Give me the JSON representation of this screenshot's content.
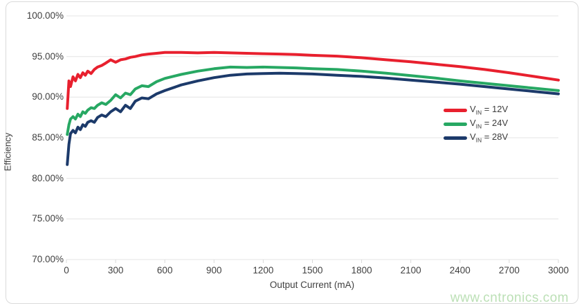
{
  "colors": {
    "grid": "#e4e4e4",
    "tick": "#d9d9d9",
    "axis_text": "#3f3f3f",
    "watermark": "#bce0b6",
    "card_border": "#dadada",
    "series_red": "#e8202e",
    "series_green": "#27a863",
    "series_navy": "#1c3a6a"
  },
  "watermark": "www.cntronics.com",
  "chart_data": {
    "type": "line",
    "title": "",
    "xlabel": "Output Current (mA)",
    "ylabel": "Efficiency",
    "xlim": [
      0,
      3000
    ],
    "ylim": [
      70,
      100
    ],
    "grid": "horizontal",
    "legend_position": "middle-right",
    "x_ticks": [
      0,
      300,
      600,
      900,
      1200,
      1500,
      1800,
      2100,
      2400,
      2700,
      3000
    ],
    "x_tick_labels": [
      "0",
      "300",
      "600",
      "900",
      "1200",
      "1500",
      "1800",
      "2100",
      "2400",
      "2700",
      "3000"
    ],
    "y_ticks": [
      100,
      95,
      90,
      85,
      80,
      75,
      70
    ],
    "y_tick_labels": [
      "100.00%",
      "95.00%",
      "90.00%",
      "85.00%",
      "80.00%",
      "75.00%",
      "70.00%"
    ],
    "x": [
      5,
      15,
      25,
      40,
      55,
      70,
      85,
      100,
      115,
      130,
      150,
      170,
      190,
      215,
      240,
      270,
      300,
      330,
      360,
      390,
      420,
      460,
      500,
      550,
      600,
      700,
      800,
      900,
      1000,
      1100,
      1200,
      1300,
      1400,
      1500,
      1650,
      1800,
      1950,
      2100,
      2250,
      2400,
      2550,
      2700,
      2850,
      3000
    ],
    "series": [
      {
        "label_sym": "V",
        "label_sub": "IN",
        "label_rest": "= 12V",
        "color": "#e8202e",
        "values": [
          88.6,
          92.0,
          91.3,
          92.5,
          92.0,
          92.8,
          92.4,
          93.0,
          92.7,
          93.2,
          92.9,
          93.4,
          93.7,
          93.9,
          94.2,
          94.6,
          94.3,
          94.6,
          94.7,
          94.9,
          95.0,
          95.2,
          95.3,
          95.4,
          95.5,
          95.5,
          95.45,
          95.5,
          95.45,
          95.4,
          95.35,
          95.3,
          95.25,
          95.15,
          95.05,
          94.85,
          94.6,
          94.35,
          94.05,
          93.75,
          93.4,
          93.0,
          92.55,
          92.1
        ]
      },
      {
        "label_sym": "V",
        "label_sub": "IN",
        "label_rest": "= 24V",
        "color": "#27a863",
        "values": [
          85.4,
          86.6,
          87.3,
          87.6,
          87.3,
          87.9,
          87.6,
          88.2,
          88.0,
          88.4,
          88.7,
          88.6,
          89.0,
          89.3,
          89.1,
          89.6,
          90.3,
          89.9,
          90.5,
          90.3,
          91.0,
          91.4,
          91.3,
          91.9,
          92.3,
          92.8,
          93.2,
          93.5,
          93.7,
          93.65,
          93.7,
          93.65,
          93.6,
          93.5,
          93.4,
          93.2,
          92.95,
          92.65,
          92.35,
          92.0,
          91.7,
          91.4,
          91.1,
          90.8
        ]
      },
      {
        "label_sym": "V",
        "label_sub": "IN",
        "label_rest": "= 28V",
        "color": "#1c3a6a",
        "values": [
          81.7,
          84.2,
          85.5,
          85.9,
          85.6,
          86.3,
          86.0,
          86.6,
          86.4,
          86.9,
          87.1,
          86.9,
          87.5,
          87.8,
          87.6,
          88.2,
          88.6,
          88.2,
          89.0,
          88.6,
          89.5,
          89.9,
          89.8,
          90.4,
          90.8,
          91.5,
          92.0,
          92.4,
          92.7,
          92.85,
          92.9,
          92.95,
          92.9,
          92.85,
          92.7,
          92.55,
          92.35,
          92.1,
          91.85,
          91.6,
          91.3,
          91.0,
          90.7,
          90.4
        ]
      }
    ]
  }
}
